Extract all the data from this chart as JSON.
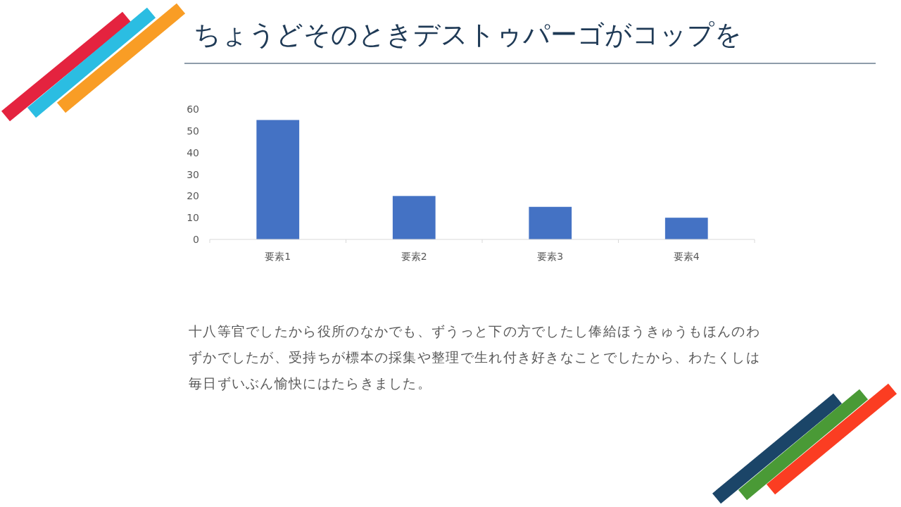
{
  "chart_data": {
    "type": "bar",
    "title": "ちょうどそのときデストゥパーゴがコップを",
    "categories": [
      "要素1",
      "要素2",
      "要素3",
      "要素4"
    ],
    "values": [
      55,
      20,
      15,
      10
    ],
    "color": "#4472c4",
    "ylim": [
      0,
      60
    ],
    "yticks": [
      0,
      10,
      20,
      30,
      40,
      50,
      60
    ],
    "annotations": [
      "十八等官でしたから役所のなかでも、ずうっと下の方でしたし俸給ほうきゅうもほんのわずかでしたが、受持ちが標本の採集や整理で生れ付き好きなことでしたから、わたくしは毎日ずいぶん愉快にはたらきました。"
    ]
  }
}
